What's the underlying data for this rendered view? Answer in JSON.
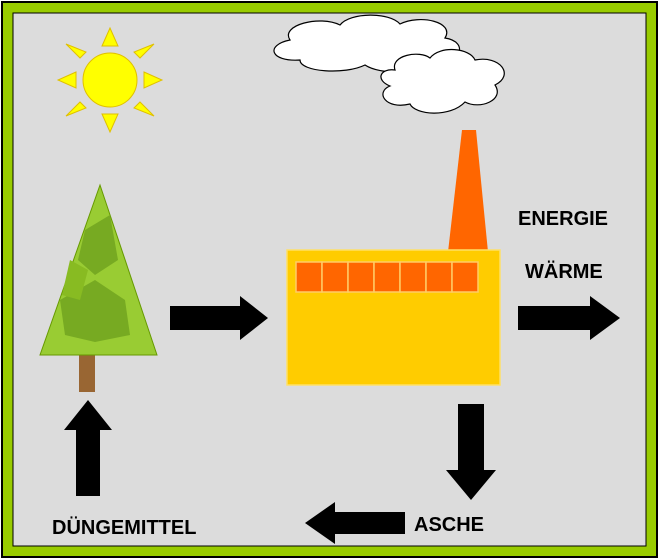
{
  "labels": {
    "energy": "ENERGIE",
    "heat": "WÄRME",
    "ash": "ASCHE",
    "fertilizer": "DÜNGEMITTEL"
  }
}
